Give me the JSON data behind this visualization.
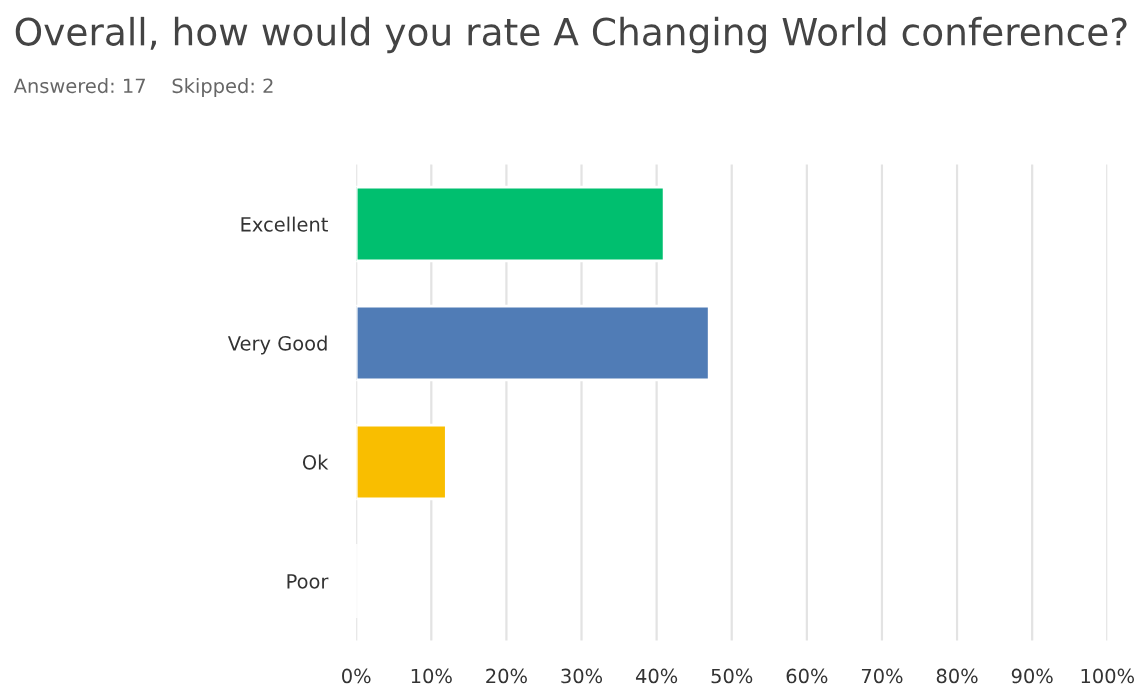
{
  "chart_data": {
    "type": "bar",
    "orientation": "horizontal",
    "title": "Overall, how would you rate A Changing World conference?",
    "subtitle": "Answered: 17    Skipped: 2",
    "categories": [
      "Excellent",
      "Very Good",
      "Ok",
      "Poor"
    ],
    "values": [
      41,
      47,
      12,
      0
    ],
    "colors": [
      "#00bf6f",
      "#507cb6",
      "#f9be00",
      null
    ],
    "xlim": [
      0,
      100
    ],
    "xticks": [
      {
        "value": 0,
        "label": "0%"
      },
      {
        "value": 10,
        "label": "10%"
      },
      {
        "value": 20,
        "label": "20%"
      },
      {
        "value": 30,
        "label": "30%"
      },
      {
        "value": 40,
        "label": "40%"
      },
      {
        "value": 50,
        "label": "50%"
      },
      {
        "value": 60,
        "label": "60%"
      },
      {
        "value": 70,
        "label": "70%"
      },
      {
        "value": 80,
        "label": "80%"
      },
      {
        "value": 90,
        "label": "90%"
      },
      {
        "value": 100,
        "label": "100%"
      }
    ],
    "grid": "x"
  }
}
